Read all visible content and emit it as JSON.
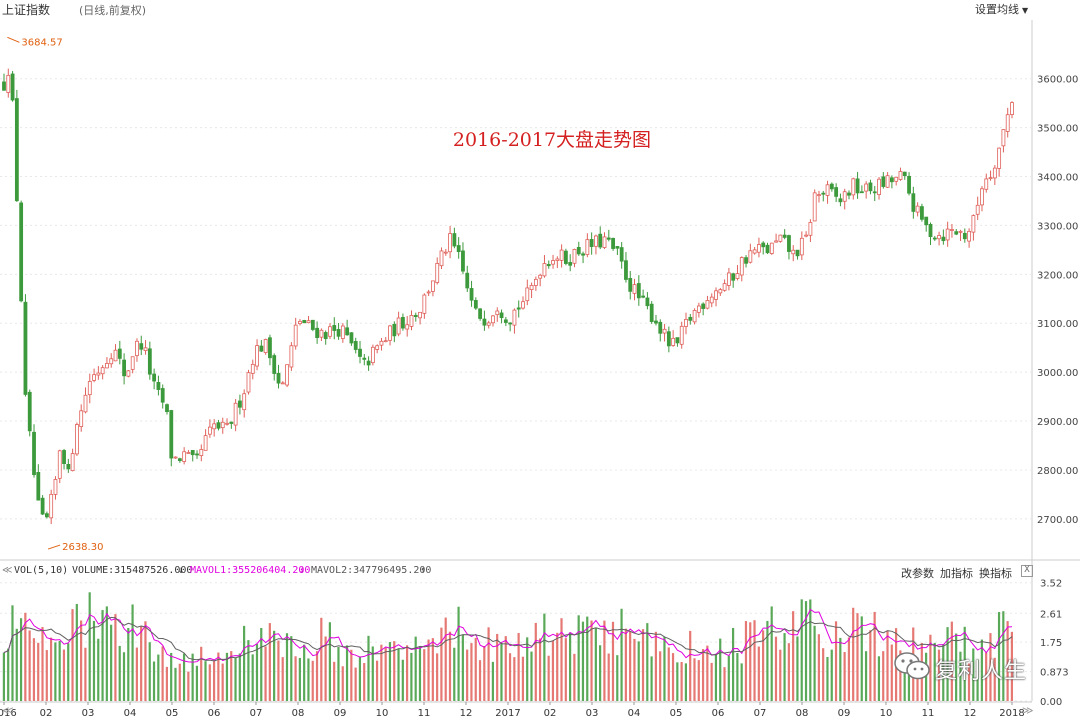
{
  "header": {
    "title": "上证指数",
    "subtitle": "(日线,前复权)",
    "ma_settings_label": "设置均线"
  },
  "annotation": "2016-2017大盘走势图",
  "volume_panel": {
    "name": "VOL(5,10)",
    "volume_label": "VOLUME:315487526.000",
    "mavol1_label": "MAVOL1:355206404.200",
    "mavol2_label": "MAVOL2:347796495.200",
    "buttons": [
      "改参数",
      "加指标",
      "换指标"
    ],
    "close_label": "X"
  },
  "watermark": "复利人生",
  "colors": {
    "up": "#e0605a",
    "down": "#3c9a3c",
    "grid": "#e8e8e8",
    "mavol1": "#e000e0",
    "mavol2": "#606060",
    "marker": "#e06010"
  },
  "chart_data": [
    {
      "type": "candlestick",
      "title": "上证指数",
      "y_ticks": [
        "3600.00",
        "3500.00",
        "3400.00",
        "3300.00",
        "3200.00",
        "3100.00",
        "3000.00",
        "2900.00",
        "2800.00",
        "2700.00"
      ],
      "ylim": [
        2620,
        3720
      ],
      "x_ticks": [
        {
          "label": "2016",
          "month_index": 0
        },
        {
          "label": "02",
          "month_index": 1
        },
        {
          "label": "03",
          "month_index": 2
        },
        {
          "label": "04",
          "month_index": 3
        },
        {
          "label": "05",
          "month_index": 4
        },
        {
          "label": "06",
          "month_index": 5
        },
        {
          "label": "07",
          "month_index": 6
        },
        {
          "label": "08",
          "month_index": 7
        },
        {
          "label": "09",
          "month_index": 8
        },
        {
          "label": "10",
          "month_index": 9
        },
        {
          "label": "11",
          "month_index": 10
        },
        {
          "label": "12",
          "month_index": 11
        },
        {
          "label": "2017",
          "month_index": 12
        },
        {
          "label": "02",
          "month_index": 13
        },
        {
          "label": "03",
          "month_index": 14
        },
        {
          "label": "04",
          "month_index": 15
        },
        {
          "label": "05",
          "month_index": 16
        },
        {
          "label": "06",
          "month_index": 17
        },
        {
          "label": "07",
          "month_index": 18
        },
        {
          "label": "08",
          "month_index": 19
        },
        {
          "label": "09",
          "month_index": 20
        },
        {
          "label": "10",
          "month_index": 21
        },
        {
          "label": "11",
          "month_index": 22
        },
        {
          "label": "12",
          "month_index": 23
        },
        {
          "label": "2018",
          "month_index": 24
        }
      ],
      "high_marker": "3684.57",
      "low_marker": "2638.30",
      "approx_close_path": [
        [
          0,
          3590
        ],
        [
          0.08,
          3640
        ],
        [
          0.2,
          3550
        ],
        [
          0.35,
          3280
        ],
        [
          0.5,
          2950
        ],
        [
          0.7,
          2800
        ],
        [
          0.85,
          2700
        ],
        [
          1.0,
          2690
        ],
        [
          1.2,
          2760
        ],
        [
          1.35,
          2860
        ],
        [
          1.55,
          2780
        ],
        [
          1.7,
          2900
        ],
        [
          1.85,
          2920
        ],
        [
          2.0,
          2980
        ],
        [
          2.3,
          3010
        ],
        [
          2.6,
          3050
        ],
        [
          2.9,
          2990
        ],
        [
          3.1,
          3050
        ],
        [
          3.3,
          3060
        ],
        [
          3.6,
          2960
        ],
        [
          3.85,
          2930
        ],
        [
          4.0,
          2820
        ],
        [
          4.3,
          2830
        ],
        [
          4.55,
          2810
        ],
        [
          4.8,
          2860
        ],
        [
          5.0,
          2890
        ],
        [
          5.3,
          2880
        ],
        [
          5.5,
          2920
        ],
        [
          5.7,
          2960
        ],
        [
          5.95,
          3040
        ],
        [
          6.2,
          3060
        ],
        [
          6.45,
          3010
        ],
        [
          6.6,
          2960
        ],
        [
          6.85,
          3050
        ],
        [
          7.0,
          3110
        ],
        [
          7.3,
          3090
        ],
        [
          7.6,
          3080
        ],
        [
          8.0,
          3090
        ],
        [
          8.3,
          3050
        ],
        [
          8.55,
          3010
        ],
        [
          8.8,
          3040
        ],
        [
          9.0,
          3060
        ],
        [
          9.3,
          3090
        ],
        [
          9.6,
          3110
        ],
        [
          9.9,
          3130
        ],
        [
          10.15,
          3180
        ],
        [
          10.4,
          3230
        ],
        [
          10.6,
          3270
        ],
        [
          10.8,
          3240
        ],
        [
          11.0,
          3180
        ],
        [
          11.2,
          3120
        ],
        [
          11.5,
          3110
        ],
        [
          11.75,
          3140
        ],
        [
          12.0,
          3110
        ],
        [
          12.2,
          3130
        ],
        [
          12.5,
          3160
        ],
        [
          12.8,
          3220
        ],
        [
          13.1,
          3240
        ],
        [
          13.4,
          3230
        ],
        [
          13.7,
          3250
        ],
        [
          14.0,
          3260
        ],
        [
          14.3,
          3270
        ],
        [
          14.6,
          3240
        ],
        [
          14.9,
          3180
        ],
        [
          15.2,
          3140
        ],
        [
          15.5,
          3110
        ],
        [
          15.8,
          3060
        ],
        [
          16.0,
          3050
        ],
        [
          16.25,
          3100
        ],
        [
          16.5,
          3130
        ],
        [
          16.8,
          3160
        ],
        [
          17.0,
          3170
        ],
        [
          17.3,
          3190
        ],
        [
          17.6,
          3230
        ],
        [
          17.9,
          3250
        ],
        [
          18.2,
          3250
        ],
        [
          18.5,
          3270
        ],
        [
          18.8,
          3240
        ],
        [
          19.1,
          3270
        ],
        [
          19.3,
          3360
        ],
        [
          19.6,
          3370
        ],
        [
          19.9,
          3350
        ],
        [
          20.2,
          3380
        ],
        [
          20.5,
          3370
        ],
        [
          20.8,
          3380
        ],
        [
          21.1,
          3390
        ],
        [
          21.4,
          3400
        ],
        [
          21.7,
          3330
        ],
        [
          22.0,
          3290
        ],
        [
          22.3,
          3280
        ],
        [
          22.6,
          3290
        ],
        [
          22.9,
          3280
        ],
        [
          23.1,
          3310
        ],
        [
          23.3,
          3390
        ],
        [
          23.5,
          3410
        ],
        [
          23.7,
          3460
        ],
        [
          23.85,
          3510
        ],
        [
          24.0,
          3560
        ]
      ]
    },
    {
      "type": "bar",
      "title": "VOL(5,10)",
      "y_ticks": [
        "3.52",
        "2.61",
        "1.75",
        "0.873",
        "0.00"
      ],
      "ylim": [
        0,
        3.6
      ],
      "series": [
        {
          "name": "VOLUME",
          "last": "315487526.000"
        },
        {
          "name": "MAVOL1",
          "last": "355206404.200"
        },
        {
          "name": "MAVOL2",
          "last": "347796495.200"
        }
      ],
      "approx_level_path": [
        [
          0,
          2.2
        ],
        [
          1,
          1.6
        ],
        [
          1.5,
          1.9
        ],
        [
          2.0,
          2.4
        ],
        [
          2.5,
          2.1
        ],
        [
          3.0,
          2.2
        ],
        [
          3.5,
          1.8
        ],
        [
          4.0,
          1.2
        ],
        [
          5.0,
          1.4
        ],
        [
          5.5,
          1.5
        ],
        [
          6.0,
          1.9
        ],
        [
          6.5,
          1.7
        ],
        [
          7.0,
          1.5
        ],
        [
          7.5,
          1.9
        ],
        [
          8.0,
          1.6
        ],
        [
          8.5,
          1.4
        ],
        [
          9.0,
          1.5
        ],
        [
          9.5,
          1.8
        ],
        [
          10.0,
          1.9
        ],
        [
          10.5,
          2.3
        ],
        [
          11.0,
          2.0
        ],
        [
          11.5,
          1.8
        ],
        [
          12.0,
          1.4
        ],
        [
          12.5,
          1.6
        ],
        [
          13.0,
          2.1
        ],
        [
          13.5,
          1.8
        ],
        [
          14.0,
          1.9
        ],
        [
          14.5,
          2.1
        ],
        [
          15.0,
          1.8
        ],
        [
          15.5,
          1.6
        ],
        [
          16.0,
          1.5
        ],
        [
          16.5,
          1.6
        ],
        [
          17.0,
          1.5
        ],
        [
          17.5,
          1.6
        ],
        [
          18.0,
          2.0
        ],
        [
          18.5,
          2.2
        ],
        [
          19.0,
          2.3
        ],
        [
          19.5,
          2.0
        ],
        [
          20.0,
          2.0
        ],
        [
          20.5,
          2.1
        ],
        [
          21.0,
          1.7
        ],
        [
          21.5,
          1.6
        ],
        [
          22.0,
          1.7
        ],
        [
          22.5,
          1.9
        ],
        [
          23.0,
          1.5
        ],
        [
          23.3,
          1.3
        ],
        [
          23.6,
          1.9
        ],
        [
          24.0,
          2.3
        ]
      ]
    }
  ]
}
